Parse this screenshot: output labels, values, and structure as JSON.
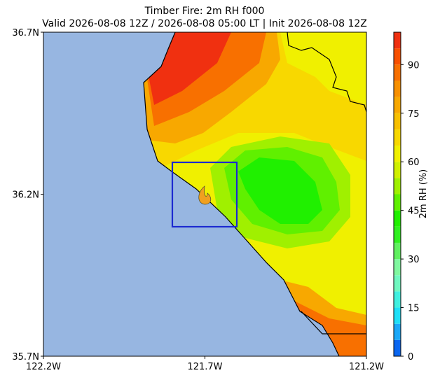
{
  "chart_data": {
    "type": "map",
    "title": "Timber Fire: 2m RH f000",
    "subtitle": "Valid 2026-08-08 12Z / 2026-08-08 05:00 LT | Init 2026-08-08 12Z",
    "xlim": [
      -122.2,
      -121.2
    ],
    "ylim": [
      35.7,
      36.7
    ],
    "xticks": [
      {
        "value": -122.2,
        "label": "122.2W"
      },
      {
        "value": -121.7,
        "label": "121.7W"
      },
      {
        "value": -121.2,
        "label": "121.2W"
      }
    ],
    "yticks": [
      {
        "value": 35.7,
        "label": "35.7N"
      },
      {
        "value": 36.2,
        "label": "36.2N"
      },
      {
        "value": 36.7,
        "label": "36.7N"
      }
    ],
    "colorbar": {
      "label": "2m RH (%)",
      "lim": [
        0,
        100
      ],
      "ticks": [
        0,
        15,
        30,
        45,
        60,
        75,
        90
      ],
      "levels": [
        0,
        5,
        10,
        15,
        20,
        25,
        30,
        35,
        40,
        45,
        50,
        55,
        60,
        65,
        70,
        75,
        80,
        85,
        90,
        95,
        100
      ],
      "colors": [
        "#0a66f0",
        "#1aa8f8",
        "#1ee0f8",
        "#40f0e0",
        "#70f8c0",
        "#80f8a0",
        "#60f060",
        "#30f020",
        "#20f000",
        "#60f000",
        "#a0f000",
        "#d0f000",
        "#f0f000",
        "#f8d800",
        "#f8c000",
        "#f8a800",
        "#f89000",
        "#f87000",
        "#f85000",
        "#f03010"
      ]
    }
  }
}
